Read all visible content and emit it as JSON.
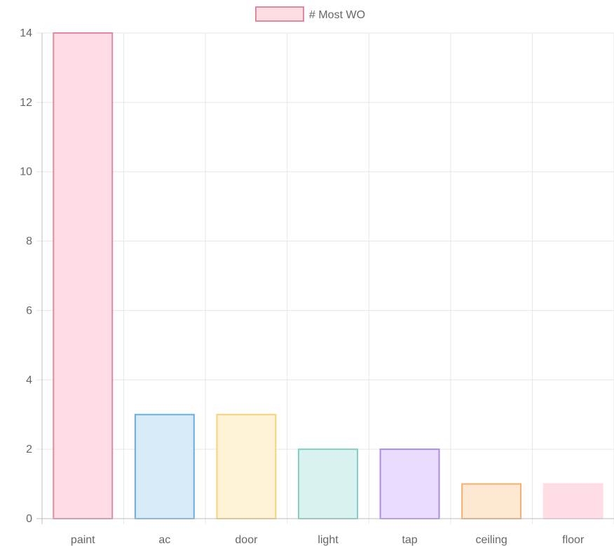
{
  "chart_data": {
    "type": "bar",
    "categories": [
      "paint",
      "ac",
      "door",
      "light",
      "tap",
      "ceiling",
      "floor"
    ],
    "series": [
      {
        "name": "# Most WO",
        "values": [
          14,
          3,
          3,
          2,
          2,
          1,
          1
        ]
      }
    ],
    "ylim": [
      0,
      14
    ],
    "yticks": [
      0,
      2,
      4,
      6,
      8,
      10,
      12,
      14
    ],
    "grid": true,
    "legend": "top-center",
    "bar_fill_colors": [
      "#ffdde4",
      "#d6eaf8",
      "#fff3d6",
      "#d9f2f0",
      "#e9dcff",
      "#ffe8d2",
      "#ffdde4"
    ],
    "bar_stroke_colors": [
      "#e0899f",
      "#6aaee0",
      "#f3d27a",
      "#7fcfc6",
      "#ad8ae6",
      "#f0b070",
      "#ffdde4"
    ],
    "legend_fill_color": "#ffdde4",
    "legend_stroke_color": "#e0899f"
  }
}
